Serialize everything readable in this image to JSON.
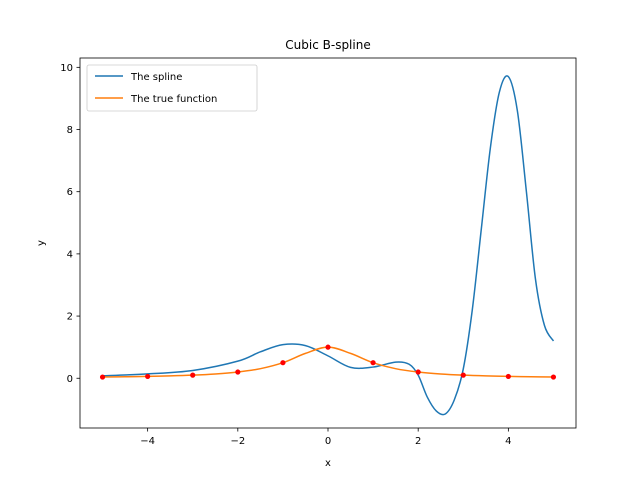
{
  "chart_data": {
    "type": "line",
    "title": "Cubic B-spline",
    "xlabel": "x",
    "ylabel": "y",
    "xlim": [
      -5.5,
      5.5
    ],
    "ylim": [
      -1.6,
      10.3
    ],
    "xticks": [
      -4,
      -2,
      0,
      2,
      4
    ],
    "xtick_labels": [
      "−4",
      "−2",
      "0",
      "2",
      "4"
    ],
    "yticks": [
      0,
      2,
      4,
      6,
      8,
      10
    ],
    "ytick_labels": [
      "0",
      "2",
      "4",
      "6",
      "8",
      "10"
    ],
    "grid": false,
    "legend_position": "upper-left",
    "series": [
      {
        "name": "The spline",
        "color": "#1f77b4",
        "x": [
          -5,
          -4,
          -3,
          -2,
          -1.5,
          -1,
          -0.5,
          0,
          0.5,
          1,
          1.5,
          1.8,
          2,
          2.2,
          2.4,
          2.6,
          2.8,
          3,
          3.2,
          3.4,
          3.6,
          3.8,
          4,
          4.2,
          4.4,
          4.6,
          4.8,
          5
        ],
        "y": [
          0.08,
          0.14,
          0.25,
          0.55,
          0.85,
          1.08,
          1.05,
          0.72,
          0.35,
          0.36,
          0.52,
          0.45,
          0.1,
          -0.6,
          -1.05,
          -1.15,
          -0.7,
          0.3,
          2.2,
          4.8,
          7.4,
          9.2,
          9.7,
          8.6,
          6.0,
          3.2,
          1.7,
          1.2
        ]
      },
      {
        "name": "The true function",
        "color": "#ff7f0e",
        "x": [
          -5,
          -4.5,
          -4,
          -3.5,
          -3,
          -2.5,
          -2,
          -1.5,
          -1,
          -0.5,
          0,
          0.5,
          1,
          1.5,
          2,
          2.5,
          3,
          3.5,
          4,
          4.5,
          5
        ],
        "y": [
          0.0385,
          0.047,
          0.0588,
          0.0755,
          0.1,
          0.1379,
          0.2,
          0.3077,
          0.5,
          0.8,
          1.0,
          0.8,
          0.5,
          0.3077,
          0.2,
          0.1379,
          0.1,
          0.0755,
          0.0588,
          0.047,
          0.0385
        ]
      }
    ],
    "markers": {
      "color": "#ff0000",
      "x": [
        -5,
        -4,
        -3,
        -2,
        -1,
        0,
        1,
        2,
        3,
        4,
        5
      ],
      "y": [
        0.0385,
        0.0588,
        0.1,
        0.2,
        0.5,
        1.0,
        0.5,
        0.2,
        0.1,
        0.0588,
        0.0385
      ]
    }
  }
}
